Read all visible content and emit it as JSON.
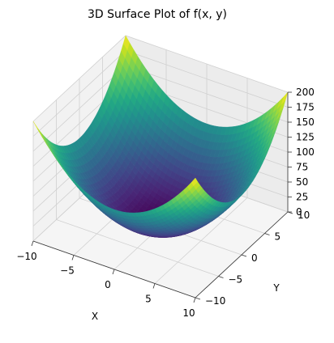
{
  "chart_data": {
    "type": "surface",
    "title": "3D Surface Plot of f(x, y)",
    "xlabel": "X",
    "ylabel": "Y",
    "zlabel": "",
    "function": "x^2 + y^2",
    "xlim": [
      -10,
      10
    ],
    "ylim": [
      -10,
      10
    ],
    "zlim": [
      0,
      200
    ],
    "x_ticks": [
      -10,
      -5,
      0,
      5,
      10
    ],
    "y_ticks": [
      -10,
      -5,
      0,
      5,
      10
    ],
    "z_ticks": [
      0,
      25,
      50,
      75,
      100,
      125,
      150,
      175,
      200
    ],
    "x_tick_labels": [
      "−10",
      "−5",
      "0",
      "5",
      "10"
    ],
    "y_tick_labels": [
      "−10",
      "−5",
      "0",
      "5",
      "10"
    ],
    "z_tick_labels": [
      "0",
      "25",
      "50",
      "75",
      "100",
      "125",
      "150",
      "175",
      "200"
    ],
    "colormap": "viridis",
    "grid": true,
    "pane_color": "#f2f2f2",
    "grid_color": "#d0d0d0"
  }
}
